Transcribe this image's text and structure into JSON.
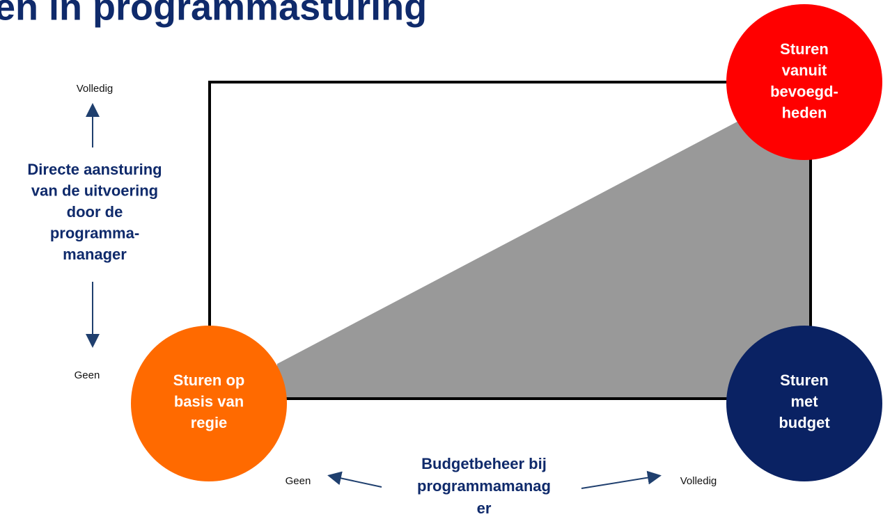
{
  "title": "en in programmasturing",
  "vertical_axis": {
    "top": "Volledig",
    "bottom": "Geen",
    "label": [
      "Directe aansturing",
      "van de uitvoering",
      "door de",
      "programma-",
      "manager"
    ]
  },
  "horizontal_axis": {
    "left": "Geen",
    "right": "Volledig",
    "label": [
      "Budgetbeheer bij",
      "programmamanag",
      "er"
    ]
  },
  "nodes": [
    {
      "label": [
        "Sturen",
        "vanuit",
        "bevoegd-",
        "heden"
      ]
    },
    {
      "label": [
        "Sturen op",
        "basis van",
        "regie"
      ]
    },
    {
      "label": [
        "Sturen",
        "met",
        "budget"
      ]
    }
  ]
}
